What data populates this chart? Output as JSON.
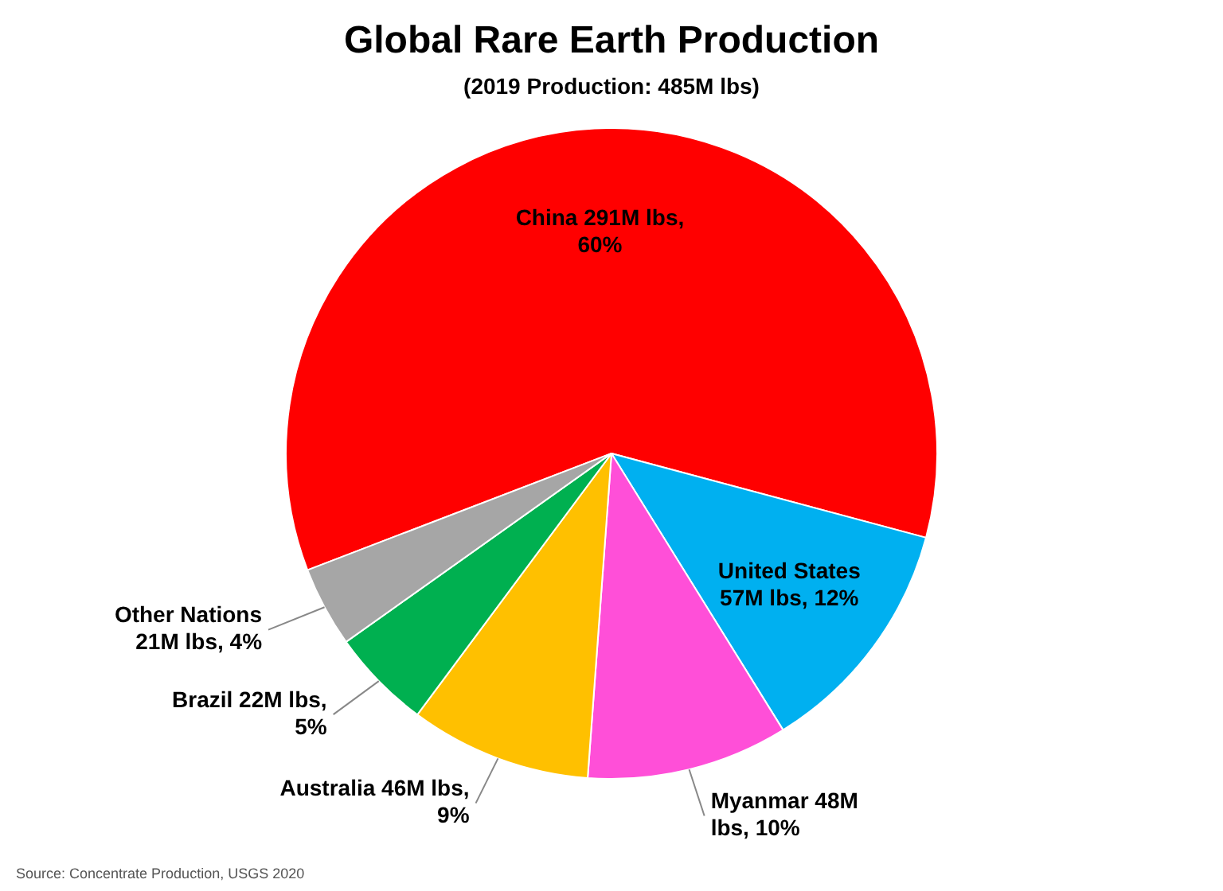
{
  "chart_data": {
    "type": "pie",
    "title": "Global Rare Earth Production",
    "subtitle": "(2019 Production: 485M lbs)",
    "categories": [
      "China",
      "United States",
      "Myanmar",
      "Australia",
      "Brazil",
      "Other Nations"
    ],
    "values": [
      60,
      12,
      10,
      9,
      5,
      4
    ],
    "colors": [
      "#ff0000",
      "#00b0f0",
      "#ff4fd8",
      "#ffc000",
      "#00b050",
      "#a6a6a6"
    ],
    "value_labels": [
      "291M lbs, 60%",
      "57M lbs, 12%",
      "48M lbs, 10%",
      "46M lbs, 9%",
      "22M lbs, 5%",
      "21M lbs, 4%"
    ],
    "legend": false,
    "annotations": [
      "Source: Concentrate Production, USGS 2020"
    ]
  }
}
